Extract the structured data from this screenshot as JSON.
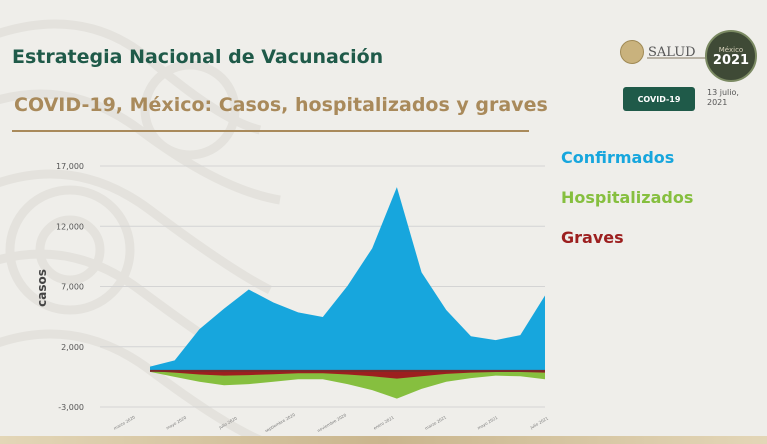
{
  "header": {
    "title": "Estrategia Nacional de Vacunación",
    "subtitle": "COVID-19, México: Casos, hospitalizados y graves"
  },
  "branding": {
    "salud": "SALUD",
    "badge_year": "2021",
    "badge_label": "México",
    "pill": "COVID-19",
    "date_line1": "13 julio,",
    "date_line2": "2021"
  },
  "colors": {
    "confirmados": "#17a6dd",
    "hospitalizados": "#86bf3f",
    "graves": "#9c1f1f",
    "title": "#1f5a49",
    "subtitle": "#a98a5b"
  },
  "chart_data": {
    "type": "area",
    "ylabel": "casos",
    "ylim": [
      -3000,
      17000
    ],
    "yticks": [
      -3000,
      2000,
      7000,
      12000,
      17000
    ],
    "ytick_labels": [
      "-3,000",
      "2,000",
      "7,000",
      "12,000",
      "17,000"
    ],
    "grid": true,
    "legend_position": "right",
    "x": [
      "2020-03",
      "2020-04",
      "2020-05",
      "2020-06",
      "2020-07",
      "2020-08",
      "2020-09",
      "2020-10",
      "2020-11",
      "2020-12",
      "2021-01",
      "2021-02",
      "2021-03",
      "2021-04",
      "2021-05",
      "2021-06",
      "2021-07"
    ],
    "x_tick_labels": [
      "marzo 2020",
      "mayo 2020",
      "julio 2020",
      "septiembre 2020",
      "noviembre 2020",
      "enero 2021",
      "marzo 2021",
      "mayo 2021",
      "julio 2021"
    ],
    "series": [
      {
        "name": "Confirmados",
        "values": [
          100,
          1200,
          3200,
          5500,
          6500,
          6000,
          4600,
          4800,
          6800,
          10500,
          15000,
          8500,
          4800,
          3200,
          2300,
          3300,
          6000
        ]
      },
      {
        "name": "Hospitalizados",
        "values": [
          -80,
          -500,
          -900,
          -1200,
          -1100,
          -900,
          -700,
          -700,
          -1100,
          -1600,
          -2300,
          -1500,
          -900,
          -600,
          -400,
          -450,
          -700
        ]
      },
      {
        "name": "Graves",
        "values": [
          -20,
          -150,
          -300,
          -400,
          -350,
          -280,
          -200,
          -200,
          -300,
          -450,
          -650,
          -450,
          -250,
          -150,
          -100,
          -100,
          -150
        ]
      }
    ]
  }
}
